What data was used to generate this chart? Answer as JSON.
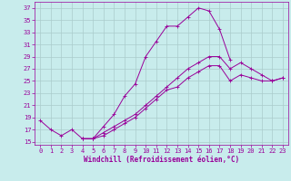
{
  "xlabel": "Windchill (Refroidissement éolien,°C)",
  "bg_color": "#c8ecec",
  "line_color": "#990099",
  "grid_color": "#aacccc",
  "line1_y": [
    18.5,
    17.0,
    16.0,
    17.0,
    15.5,
    15.5,
    17.5,
    19.5,
    22.5,
    24.5,
    29.0,
    31.5,
    34.0,
    34.0,
    35.5,
    37.0,
    36.5,
    33.5,
    28.5,
    null,
    null,
    null,
    null,
    null
  ],
  "line2_y": [
    null,
    null,
    null,
    null,
    15.5,
    15.5,
    16.5,
    17.5,
    18.5,
    19.5,
    21.0,
    22.5,
    24.0,
    25.5,
    27.0,
    28.0,
    29.0,
    29.0,
    27.0,
    28.0,
    27.0,
    26.0,
    25.0,
    25.5
  ],
  "line3_y": [
    null,
    null,
    null,
    null,
    15.5,
    15.5,
    16.0,
    17.0,
    18.0,
    19.0,
    20.5,
    22.0,
    23.5,
    24.0,
    25.5,
    26.5,
    27.5,
    27.5,
    25.0,
    26.0,
    25.5,
    25.0,
    25.0,
    25.5
  ],
  "ylim": [
    14.5,
    38.0
  ],
  "xlim": [
    -0.5,
    23.5
  ],
  "yticks": [
    15,
    17,
    19,
    21,
    23,
    25,
    27,
    29,
    31,
    33,
    35,
    37
  ],
  "xticks": [
    0,
    1,
    2,
    3,
    4,
    5,
    6,
    7,
    8,
    9,
    10,
    11,
    12,
    13,
    14,
    15,
    16,
    17,
    18,
    19,
    20,
    21,
    22,
    23
  ],
  "tick_fontsize": 5,
  "xlabel_fontsize": 5.5,
  "lw": 0.7,
  "ms": 2.0
}
